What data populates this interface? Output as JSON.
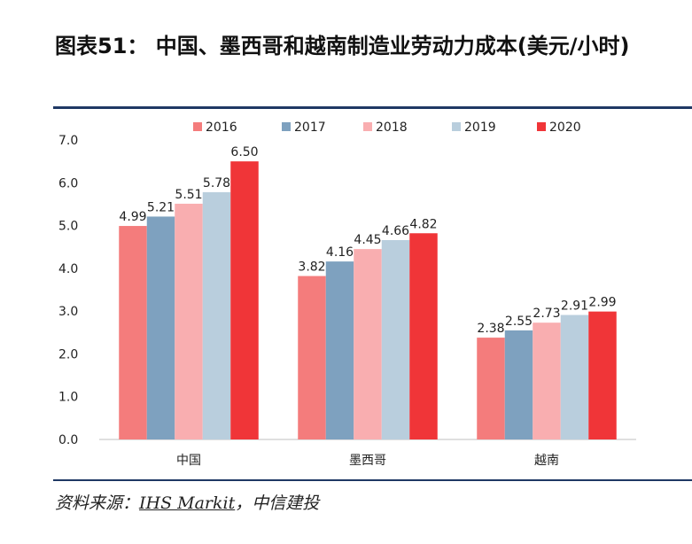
{
  "title": "图表51： 中国、墨西哥和越南制造业劳动力成本(美元/小时)",
  "source": {
    "prefix": "资料来源：",
    "underlined": "IHS Markit",
    "suffix": "，中信建投"
  },
  "chart_data": {
    "type": "bar",
    "title": "",
    "xlabel": "",
    "ylabel": "",
    "ylim": [
      0,
      7
    ],
    "yticks": [
      "0.0",
      "1.0",
      "2.0",
      "3.0",
      "4.0",
      "5.0",
      "6.0",
      "7.0"
    ],
    "categories": [
      "中国",
      "墨西哥",
      "越南"
    ],
    "legend_position": "top",
    "grid": false,
    "series": [
      {
        "name": "2016",
        "color": "#f47c7c",
        "values": [
          4.99,
          3.82,
          2.38
        ],
        "labels": [
          "4.99",
          "3.82",
          "2.38"
        ]
      },
      {
        "name": "2017",
        "color": "#7ea1bf",
        "values": [
          5.21,
          4.16,
          2.55
        ],
        "labels": [
          "5.21",
          "4.16",
          "2.55"
        ]
      },
      {
        "name": "2018",
        "color": "#f9aeb0",
        "values": [
          5.51,
          4.45,
          2.73
        ],
        "labels": [
          "5.51",
          "4.45",
          "2.73"
        ]
      },
      {
        "name": "2019",
        "color": "#b9cedd",
        "values": [
          5.78,
          4.66,
          2.91
        ],
        "labels": [
          "5.78",
          "4.66",
          "2.91"
        ]
      },
      {
        "name": "2020",
        "color": "#f03538",
        "values": [
          6.5,
          4.82,
          2.99
        ],
        "labels": [
          "6.50",
          "4.82",
          "2.99"
        ]
      }
    ]
  }
}
